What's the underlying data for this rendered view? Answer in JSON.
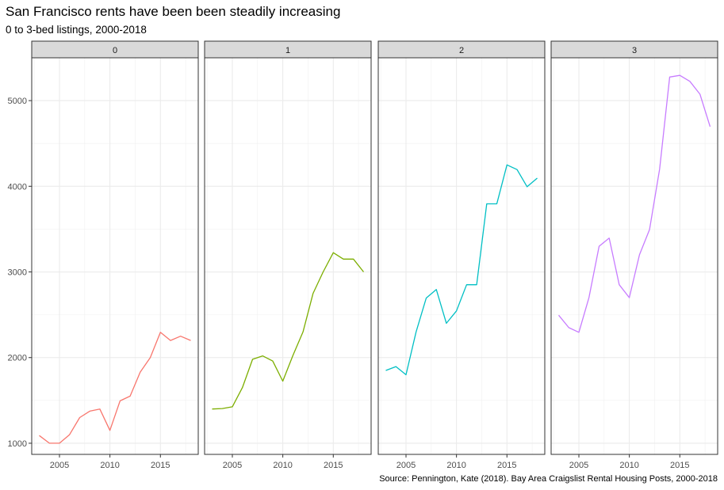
{
  "title": "San Francisco rents have been been steadily increasing",
  "subtitle": "0 to 3-bed listings, 2000-2018",
  "caption": "Source: Pennington, Kate (2018). Bay Area Craigslist Rental Housing Posts, 2000-2018",
  "chart_data": {
    "type": "line",
    "title": "San Francisco rents have been been steadily increasing",
    "subtitle": "0 to 3-bed listings, 2000-2018",
    "facet_by": "beds",
    "xlim": [
      2002.25,
      2018.75
    ],
    "ylim": [
      870,
      5500
    ],
    "x_ticks": [
      2005,
      2010,
      2015
    ],
    "y_ticks": [
      1000,
      2000,
      3000,
      4000,
      5000
    ],
    "grid": true,
    "panel_border": "#333333",
    "strip_fill": "#d9d9d9",
    "series": [
      {
        "name": "0",
        "color": "#F8766D",
        "x": [
          2003,
          2004,
          2005,
          2006,
          2007,
          2008,
          2009,
          2010,
          2011,
          2012,
          2013,
          2014,
          2015,
          2016,
          2017,
          2018
        ],
        "values": [
          1090,
          1000,
          1000,
          1100,
          1300,
          1375,
          1400,
          1150,
          1495,
          1550,
          1830,
          2000,
          2295,
          2200,
          2250,
          2200
        ]
      },
      {
        "name": "1",
        "color": "#7CAE00",
        "x": [
          2003,
          2004,
          2005,
          2006,
          2007,
          2008,
          2009,
          2010,
          2011,
          2012,
          2013,
          2014,
          2015,
          2016,
          2017,
          2018
        ],
        "values": [
          1400,
          1405,
          1425,
          1650,
          1980,
          2020,
          1960,
          1725,
          2025,
          2300,
          2750,
          3000,
          3225,
          3150,
          3150,
          3000
        ]
      },
      {
        "name": "2",
        "color": "#00BFC4",
        "x": [
          2003,
          2004,
          2005,
          2006,
          2007,
          2008,
          2009,
          2010,
          2011,
          2012,
          2013,
          2014,
          2015,
          2016,
          2017,
          2018
        ],
        "values": [
          1850,
          1895,
          1800,
          2300,
          2695,
          2795,
          2400,
          2545,
          2850,
          2850,
          3795,
          3795,
          4250,
          4195,
          3995,
          4095
        ]
      },
      {
        "name": "3",
        "color": "#C77CFF",
        "x": [
          2003,
          2004,
          2005,
          2006,
          2007,
          2008,
          2009,
          2010,
          2011,
          2012,
          2013,
          2014,
          2015,
          2016,
          2017,
          2018
        ],
        "values": [
          2495,
          2350,
          2295,
          2700,
          3300,
          3395,
          2850,
          2700,
          3200,
          3495,
          4200,
          5275,
          5295,
          5225,
          5075,
          4695
        ]
      }
    ]
  }
}
